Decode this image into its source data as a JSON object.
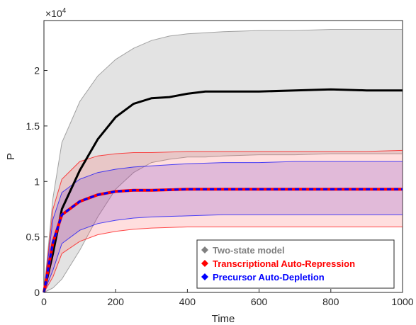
{
  "chart_data": {
    "type": "area",
    "xlabel": "Time",
    "ylabel": "P",
    "exponent_label": "×10",
    "exponent_power": "4",
    "xlim": [
      0,
      1000
    ],
    "ylim": [
      0,
      2.45
    ],
    "x_ticks": [
      0,
      200,
      400,
      600,
      800,
      1000
    ],
    "x_tick_labels": [
      "0",
      "200",
      "400",
      "600",
      "800",
      "1000"
    ],
    "y_ticks": [
      0,
      0.5,
      1,
      1.5,
      2
    ],
    "y_tick_labels": [
      "0",
      "0.5",
      "1",
      "1.5",
      "2"
    ],
    "legend_position": "bottom-right",
    "series": [
      {
        "name": "Two-state model",
        "color": "#808080",
        "x": [
          0,
          25,
          50,
          100,
          150,
          200,
          250,
          300,
          350,
          400,
          450,
          500,
          600,
          700,
          800,
          900,
          1000
        ],
        "mean": [
          0,
          0.35,
          0.75,
          1.1,
          1.38,
          1.58,
          1.7,
          1.75,
          1.76,
          1.79,
          1.81,
          1.81,
          1.81,
          1.82,
          1.83,
          1.82,
          1.82
        ],
        "upper": [
          0,
          0.85,
          1.35,
          1.72,
          1.95,
          2.1,
          2.2,
          2.27,
          2.31,
          2.33,
          2.34,
          2.35,
          2.36,
          2.36,
          2.37,
          2.37,
          2.37
        ],
        "lower": [
          0,
          0.04,
          0.12,
          0.38,
          0.68,
          0.93,
          1.08,
          1.17,
          1.2,
          1.22,
          1.22,
          1.23,
          1.24,
          1.24,
          1.25,
          1.25,
          1.25
        ]
      },
      {
        "name": "Transcriptional Auto-Repression",
        "color": "#ff0000",
        "x": [
          0,
          25,
          50,
          100,
          150,
          200,
          250,
          300,
          400,
          500,
          600,
          700,
          800,
          900,
          1000
        ],
        "mean": [
          0,
          0.45,
          0.7,
          0.82,
          0.88,
          0.91,
          0.92,
          0.92,
          0.93,
          0.93,
          0.93,
          0.93,
          0.93,
          0.93,
          0.93
        ],
        "upper": [
          0,
          0.75,
          1.02,
          1.18,
          1.23,
          1.25,
          1.26,
          1.26,
          1.27,
          1.27,
          1.27,
          1.27,
          1.27,
          1.27,
          1.28
        ],
        "lower": [
          0,
          0.14,
          0.35,
          0.46,
          0.52,
          0.55,
          0.57,
          0.58,
          0.59,
          0.59,
          0.59,
          0.59,
          0.59,
          0.59,
          0.59
        ]
      },
      {
        "name": "Precursor Auto-Depletion",
        "color": "#0000ff",
        "x": [
          0,
          25,
          50,
          100,
          150,
          200,
          250,
          300,
          400,
          500,
          600,
          700,
          800,
          900,
          1000
        ],
        "mean": [
          0,
          0.45,
          0.7,
          0.82,
          0.88,
          0.91,
          0.92,
          0.92,
          0.93,
          0.93,
          0.93,
          0.93,
          0.93,
          0.93,
          0.93
        ],
        "upper": [
          0,
          0.66,
          0.9,
          1.02,
          1.08,
          1.11,
          1.13,
          1.14,
          1.16,
          1.17,
          1.17,
          1.18,
          1.18,
          1.18,
          1.18
        ],
        "lower": [
          0,
          0.2,
          0.44,
          0.56,
          0.62,
          0.65,
          0.67,
          0.68,
          0.69,
          0.7,
          0.7,
          0.7,
          0.7,
          0.7,
          0.7
        ]
      }
    ]
  }
}
